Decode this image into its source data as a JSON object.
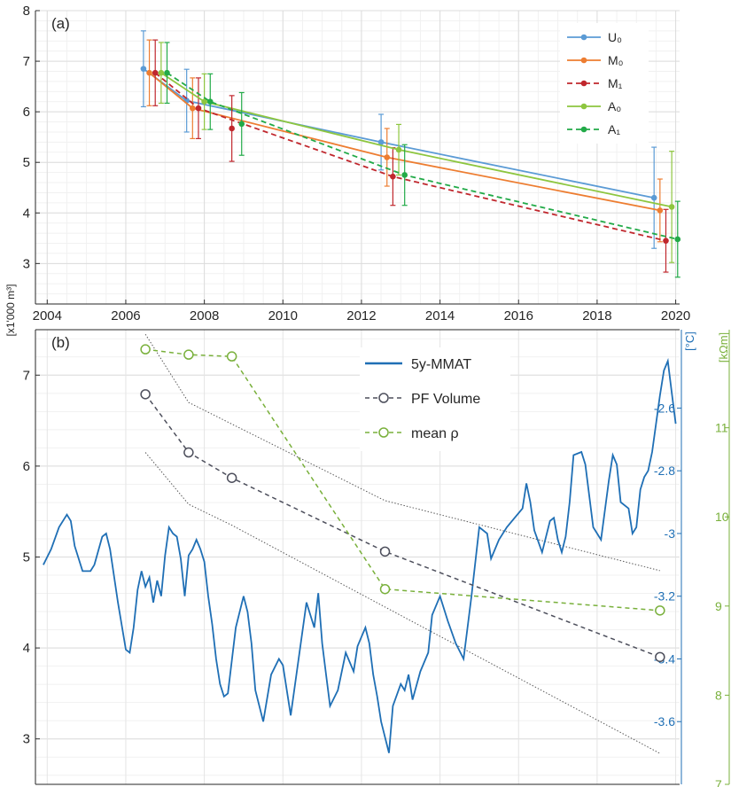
{
  "chart_data": [
    {
      "panel_label": "(a)",
      "type": "line",
      "x_ticks": [
        "2004",
        "2006",
        "2008",
        "2010",
        "2012",
        "2014",
        "2016",
        "2018",
        "2020"
      ],
      "y_ticks": [
        "3",
        "4",
        "5",
        "6",
        "7",
        "8"
      ],
      "xlim": [
        2003.7,
        2020.1
      ],
      "ylim": [
        2.2,
        8
      ],
      "grid": true,
      "legend_position": "top-right",
      "ylabel": "[x1'000 m³]",
      "series": [
        {
          "name": "U₀",
          "color": "#5b9bd5",
          "dash": "solid",
          "x": [
            2006.45,
            2007.55,
            2012.5,
            2019.45
          ],
          "y": [
            6.85,
            6.22,
            5.4,
            4.3
          ],
          "err": [
            0.75,
            0.62,
            0.55,
            1.0
          ]
        },
        {
          "name": "M₀",
          "color": "#ed7d31",
          "dash": "solid",
          "x": [
            2006.6,
            2007.7,
            2012.65,
            2019.6
          ],
          "y": [
            6.77,
            6.07,
            5.1,
            4.05
          ],
          "err": [
            0.65,
            0.6,
            0.57,
            0.62
          ]
        },
        {
          "name": "M₁",
          "color": "#c0272d",
          "dash": "dashed",
          "x": [
            2006.75,
            2007.85,
            2012.8,
            2019.75
          ],
          "y": [
            6.77,
            6.07,
            4.72,
            3.45
          ],
          "err": [
            0.65,
            0.6,
            0.57,
            0.62
          ]
        },
        {
          "name": "A₀",
          "color": "#8dc63f",
          "dash": "solid",
          "x": [
            2006.9,
            2008.0,
            2012.95,
            2019.9
          ],
          "y": [
            6.77,
            6.2,
            5.25,
            4.12
          ],
          "err": [
            0.6,
            0.55,
            0.5,
            1.1
          ]
        },
        {
          "name": "A₁",
          "color": "#22aa48",
          "dash": "dashed",
          "x": [
            2007.05,
            2008.15,
            2013.1,
            2020.05
          ],
          "y": [
            6.77,
            6.2,
            4.75,
            3.48
          ],
          "err": [
            0.6,
            0.55,
            0.6,
            0.75
          ]
        }
      ],
      "extra_points": [
        {
          "series": "M₁",
          "x": 2008.7,
          "y": 5.67,
          "err": 0.65
        },
        {
          "series": "A₁",
          "x": 2008.95,
          "y": 5.76,
          "err": 0.62
        }
      ]
    },
    {
      "panel_label": "(b)",
      "type": "line",
      "left_y_ticks": [
        "3",
        "4",
        "5",
        "6",
        "7"
      ],
      "left_ylim": [
        2.5,
        7.5
      ],
      "right1_label": "[°C]",
      "right1_ticks": [
        "-2.6",
        "-2.8",
        "-3",
        "-3.2",
        "-3.4",
        "-3.6"
      ],
      "right1_ylim": [
        -3.8,
        -2.35
      ],
      "right2_label": "[kΩm]",
      "right2_ticks": [
        "11",
        "10",
        "9",
        "8",
        "7"
      ],
      "right2_ylim": [
        7,
        12.1
      ],
      "grid": true,
      "legend_position": "top-right",
      "series": [
        {
          "name": "5y-MMAT",
          "color": "#1f6fb5",
          "dash": "solid",
          "axis": "right1",
          "x": [
            2003.9,
            2004.1,
            2004.3,
            2004.5,
            2004.6,
            2004.7,
            2004.9,
            2005.1,
            2005.2,
            2005.4,
            2005.5,
            2005.6,
            2005.8,
            2006.0,
            2006.1,
            2006.2,
            2006.3,
            2006.4,
            2006.5,
            2006.6,
            2006.7,
            2006.8,
            2006.9,
            2007.0,
            2007.1,
            2007.2,
            2007.3,
            2007.4,
            2007.5,
            2007.6,
            2007.7,
            2007.8,
            2007.9,
            2008.0,
            2008.1,
            2008.2,
            2008.3,
            2008.4,
            2008.5,
            2008.6,
            2008.8,
            2009.0,
            2009.1,
            2009.2,
            2009.3,
            2009.5,
            2009.7,
            2009.9,
            2010.0,
            2010.2,
            2010.4,
            2010.6,
            2010.8,
            2010.9,
            2011.0,
            2011.1,
            2011.2,
            2011.4,
            2011.6,
            2011.8,
            2011.9,
            2012.0,
            2012.1,
            2012.2,
            2012.3,
            2012.4,
            2012.5,
            2012.7,
            2012.8,
            2013.0,
            2013.1,
            2013.2,
            2013.3,
            2013.5,
            2013.7,
            2013.8,
            2014.0,
            2014.2,
            2014.4,
            2014.6,
            2014.8,
            2015.0,
            2015.2,
            2015.3,
            2015.5,
            2015.7,
            2015.9,
            2016.1,
            2016.2,
            2016.3,
            2016.4,
            2016.6,
            2016.8,
            2016.9,
            2017.0,
            2017.1,
            2017.2,
            2017.3,
            2017.4,
            2017.6,
            2017.7,
            2017.9,
            2018.1,
            2018.3,
            2018.4,
            2018.5,
            2018.6,
            2018.8,
            2018.9,
            2019.0,
            2019.1,
            2019.2,
            2019.3,
            2019.4,
            2019.5,
            2019.6,
            2019.7,
            2019.8,
            2019.9,
            2020.0
          ],
          "y": [
            -3.1,
            -3.05,
            -2.98,
            -2.94,
            -2.96,
            -3.04,
            -3.12,
            -3.12,
            -3.1,
            -3.01,
            -3.0,
            -3.05,
            -3.22,
            -3.37,
            -3.38,
            -3.3,
            -3.18,
            -3.12,
            -3.17,
            -3.14,
            -3.22,
            -3.15,
            -3.2,
            -3.07,
            -2.98,
            -3.0,
            -3.01,
            -3.08,
            -3.2,
            -3.07,
            -3.05,
            -3.02,
            -3.05,
            -3.09,
            -3.2,
            -3.29,
            -3.4,
            -3.48,
            -3.52,
            -3.51,
            -3.3,
            -3.2,
            -3.25,
            -3.35,
            -3.5,
            -3.6,
            -3.45,
            -3.4,
            -3.42,
            -3.58,
            -3.4,
            -3.22,
            -3.3,
            -3.19,
            -3.35,
            -3.45,
            -3.55,
            -3.5,
            -3.38,
            -3.44,
            -3.36,
            -3.33,
            -3.3,
            -3.35,
            -3.45,
            -3.52,
            -3.6,
            -3.7,
            -3.55,
            -3.48,
            -3.5,
            -3.45,
            -3.53,
            -3.44,
            -3.38,
            -3.26,
            -3.2,
            -3.28,
            -3.35,
            -3.4,
            -3.2,
            -2.98,
            -3.0,
            -3.08,
            -3.02,
            -2.98,
            -2.95,
            -2.92,
            -2.84,
            -2.9,
            -2.99,
            -3.06,
            -2.96,
            -2.95,
            -3.02,
            -3.06,
            -3.01,
            -2.9,
            -2.75,
            -2.74,
            -2.78,
            -2.98,
            -3.02,
            -2.83,
            -2.75,
            -2.78,
            -2.9,
            -2.92,
            -3.0,
            -2.98,
            -2.86,
            -2.82,
            -2.8,
            -2.74,
            -2.65,
            -2.56,
            -2.48,
            -2.45,
            -2.55,
            -2.65
          ]
        },
        {
          "name": "PF Volume",
          "color": "#4d4f5c",
          "dash": "dashed",
          "marker": "open-circle",
          "axis": "left",
          "x": [
            2006.5,
            2007.6,
            2008.7,
            2012.6,
            2019.6
          ],
          "y": [
            6.79,
            6.15,
            5.87,
            5.06,
            3.9
          ]
        },
        {
          "name": "mean ρ",
          "color": "#79b03b",
          "dash": "dashed",
          "marker": "open-circle",
          "axis": "right2",
          "x": [
            2006.5,
            2007.6,
            2008.7,
            2012.6,
            2019.6
          ],
          "y": [
            11.88,
            11.82,
            11.8,
            9.19,
            8.95
          ]
        }
      ],
      "envelope": {
        "color": "#5a5a5a",
        "upper_x": [
          2006.5,
          2007.6,
          2012.6,
          2019.6
        ],
        "upper_y": [
          7.45,
          6.7,
          5.62,
          4.85
        ],
        "lower_x": [
          2006.5,
          2007.6,
          2008.7,
          2012.6,
          2019.6
        ],
        "lower_y": [
          6.15,
          5.58,
          5.35,
          4.45,
          2.84
        ]
      }
    }
  ]
}
